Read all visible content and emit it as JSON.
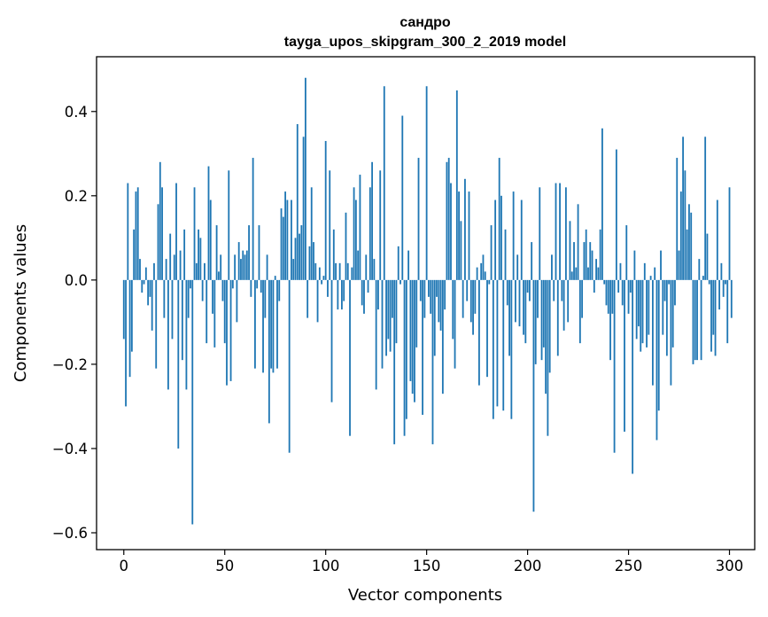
{
  "chart_data": {
    "type": "bar",
    "title": "сандро",
    "subtitle": "tayga_upos_skipgram_300_2_2019 model",
    "xlabel": "Vector components",
    "ylabel": "Components values",
    "xlim": [
      -13.5,
      312.5
    ],
    "ylim": [
      -0.64,
      0.53
    ],
    "xticks": [
      0,
      50,
      100,
      150,
      200,
      250,
      300
    ],
    "xtick_labels": [
      "0",
      "50",
      "100",
      "150",
      "200",
      "250",
      "300"
    ],
    "yticks": [
      -0.6,
      -0.4,
      -0.2,
      0.0,
      0.2,
      0.4
    ],
    "ytick_labels": [
      "−0.6",
      "−0.4",
      "−0.2",
      "0.0",
      "0.2",
      "0.4"
    ],
    "bar_color": "#1f77b4",
    "values": [
      -0.14,
      -0.3,
      0.23,
      -0.23,
      -0.17,
      0.12,
      0.21,
      0.22,
      0.05,
      -0.03,
      -0.01,
      0.03,
      -0.06,
      -0.04,
      -0.12,
      0.04,
      -0.21,
      0.18,
      0.28,
      0.22,
      -0.09,
      0.05,
      -0.26,
      0.11,
      -0.14,
      0.06,
      0.23,
      -0.4,
      0.07,
      -0.19,
      0.12,
      -0.26,
      -0.09,
      -0.02,
      -0.58,
      0.22,
      0.04,
      0.12,
      0.1,
      -0.05,
      0.04,
      -0.15,
      0.27,
      0.19,
      -0.08,
      -0.16,
      0.13,
      0.02,
      0.06,
      -0.05,
      -0.15,
      -0.25,
      0.26,
      -0.24,
      -0.02,
      0.06,
      -0.1,
      0.09,
      0.05,
      0.07,
      0.06,
      0.07,
      0.13,
      -0.04,
      0.29,
      -0.21,
      -0.02,
      0.13,
      -0.03,
      -0.22,
      -0.09,
      0.06,
      -0.34,
      -0.21,
      -0.22,
      0.01,
      -0.21,
      -0.05,
      0.17,
      0.15,
      0.21,
      0.19,
      -0.41,
      0.19,
      0.05,
      0.1,
      0.37,
      0.11,
      0.13,
      0.34,
      0.48,
      -0.09,
      0.08,
      0.22,
      0.09,
      0.04,
      -0.1,
      0.03,
      -0.01,
      0.01,
      0.33,
      -0.04,
      0.26,
      -0.29,
      0.12,
      0.04,
      -0.07,
      0.04,
      -0.07,
      -0.05,
      0.16,
      0.04,
      -0.37,
      0.03,
      0.22,
      0.19,
      0.07,
      0.25,
      -0.06,
      -0.08,
      0.06,
      -0.03,
      0.22,
      0.28,
      0.05,
      -0.26,
      -0.07,
      0.26,
      -0.21,
      0.46,
      -0.18,
      -0.14,
      -0.17,
      -0.09,
      -0.39,
      -0.15,
      0.08,
      -0.01,
      0.39,
      -0.37,
      -0.33,
      0.07,
      -0.24,
      -0.27,
      -0.29,
      -0.16,
      0.29,
      -0.05,
      -0.32,
      -0.09,
      0.46,
      -0.04,
      -0.08,
      -0.39,
      -0.18,
      -0.04,
      -0.1,
      -0.12,
      -0.27,
      -0.07,
      0.28,
      0.29,
      0.23,
      -0.14,
      -0.21,
      0.45,
      0.21,
      0.14,
      -0.09,
      0.24,
      -0.05,
      0.21,
      -0.1,
      -0.13,
      -0.08,
      0.03,
      -0.25,
      0.04,
      0.06,
      0.02,
      -0.23,
      -0.01,
      0.13,
      -0.33,
      0.19,
      -0.3,
      0.29,
      0.2,
      -0.31,
      0.12,
      -0.06,
      -0.18,
      -0.33,
      0.21,
      -0.1,
      0.06,
      -0.11,
      0.19,
      -0.13,
      -0.15,
      -0.03,
      -0.05,
      0.09,
      -0.55,
      -0.2,
      -0.09,
      0.22,
      -0.19,
      -0.16,
      -0.27,
      -0.37,
      -0.22,
      0.06,
      -0.05,
      0.23,
      -0.18,
      0.23,
      -0.05,
      -0.12,
      0.22,
      -0.1,
      0.14,
      0.02,
      0.09,
      0.03,
      0.18,
      -0.15,
      -0.09,
      0.09,
      0.12,
      0.03,
      0.09,
      0.07,
      -0.03,
      0.05,
      0.03,
      0.12,
      0.36,
      -0.01,
      -0.06,
      -0.08,
      -0.19,
      -0.08,
      -0.41,
      0.31,
      -0.03,
      0.04,
      -0.06,
      -0.36,
      0.13,
      -0.08,
      -0.03,
      -0.46,
      0.07,
      -0.14,
      -0.11,
      -0.17,
      -0.15,
      0.04,
      -0.16,
      -0.13,
      0.01,
      -0.25,
      0.03,
      -0.38,
      -0.31,
      0.07,
      -0.13,
      -0.05,
      -0.18,
      -0.01,
      -0.25,
      -0.16,
      -0.06,
      0.29,
      0.07,
      0.21,
      0.34,
      0.26,
      0.12,
      0.18,
      0.16,
      -0.2,
      -0.19,
      -0.19,
      0.05,
      -0.19,
      0.01,
      0.34,
      0.11,
      -0.01,
      -0.17,
      -0.13,
      -0.18,
      0.19,
      -0.07,
      0.04,
      -0.04,
      -0.01,
      -0.15,
      0.22,
      -0.09
    ]
  }
}
